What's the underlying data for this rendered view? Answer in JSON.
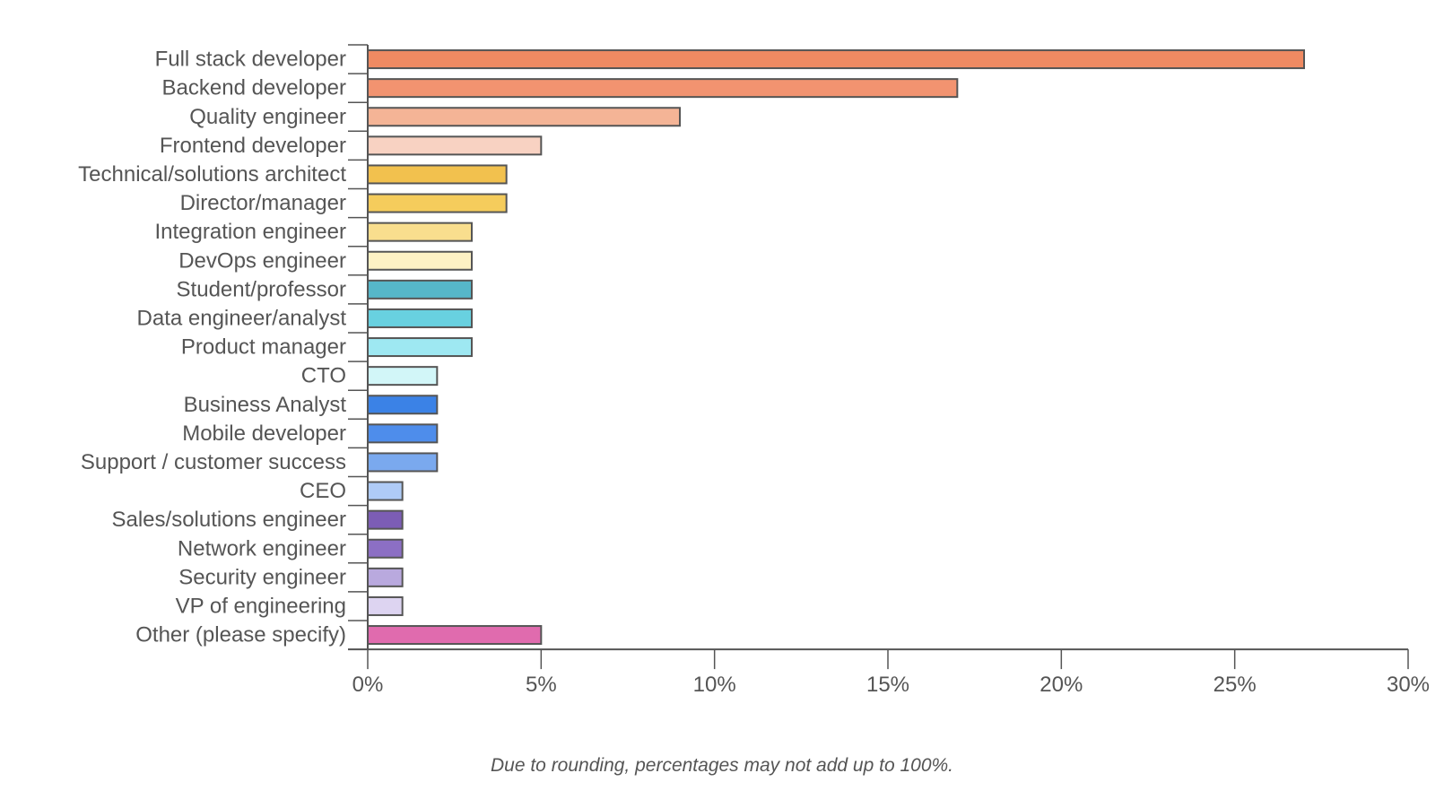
{
  "chart_data": {
    "type": "bar",
    "orientation": "horizontal",
    "categories": [
      "Full stack developer",
      "Backend developer",
      "Quality engineer",
      "Frontend developer",
      "Technical/solutions architect",
      "Director/manager",
      "Integration engineer",
      "DevOps engineer",
      "Student/professor",
      "Data engineer/analyst",
      "Product manager",
      "CTO",
      "Business Analyst",
      "Mobile developer",
      "Support / customer success",
      "CEO",
      "Sales/solutions engineer",
      "Network engineer",
      "Security engineer",
      "VP of engineering",
      "Other (please specify)"
    ],
    "values": [
      27,
      17,
      9,
      5,
      4,
      4,
      3,
      3,
      3,
      3,
      3,
      2,
      2,
      2,
      2,
      1,
      1,
      1,
      1,
      1,
      5
    ],
    "colors": [
      "#EF8A62",
      "#F29370",
      "#F4B496",
      "#F8D2C2",
      "#F2C14E",
      "#F5CC5C",
      "#F9DE8E",
      "#FDF1C4",
      "#56B7C9",
      "#68D1E0",
      "#9EE8F2",
      "#D2F6F8",
      "#3B82E6",
      "#4E8DEB",
      "#7AA9EE",
      "#AFCBF7",
      "#7C5DB5",
      "#8C6FC4",
      "#B9A9DE",
      "#DDD4F1",
      "#E06BAE"
    ],
    "xlim": [
      0,
      30
    ],
    "xticks": [
      0,
      5,
      10,
      15,
      20,
      25,
      30
    ],
    "tick_format": "{v}%",
    "grid": false,
    "footnote": "Due to rounding, percentages may not add up to 100%."
  }
}
